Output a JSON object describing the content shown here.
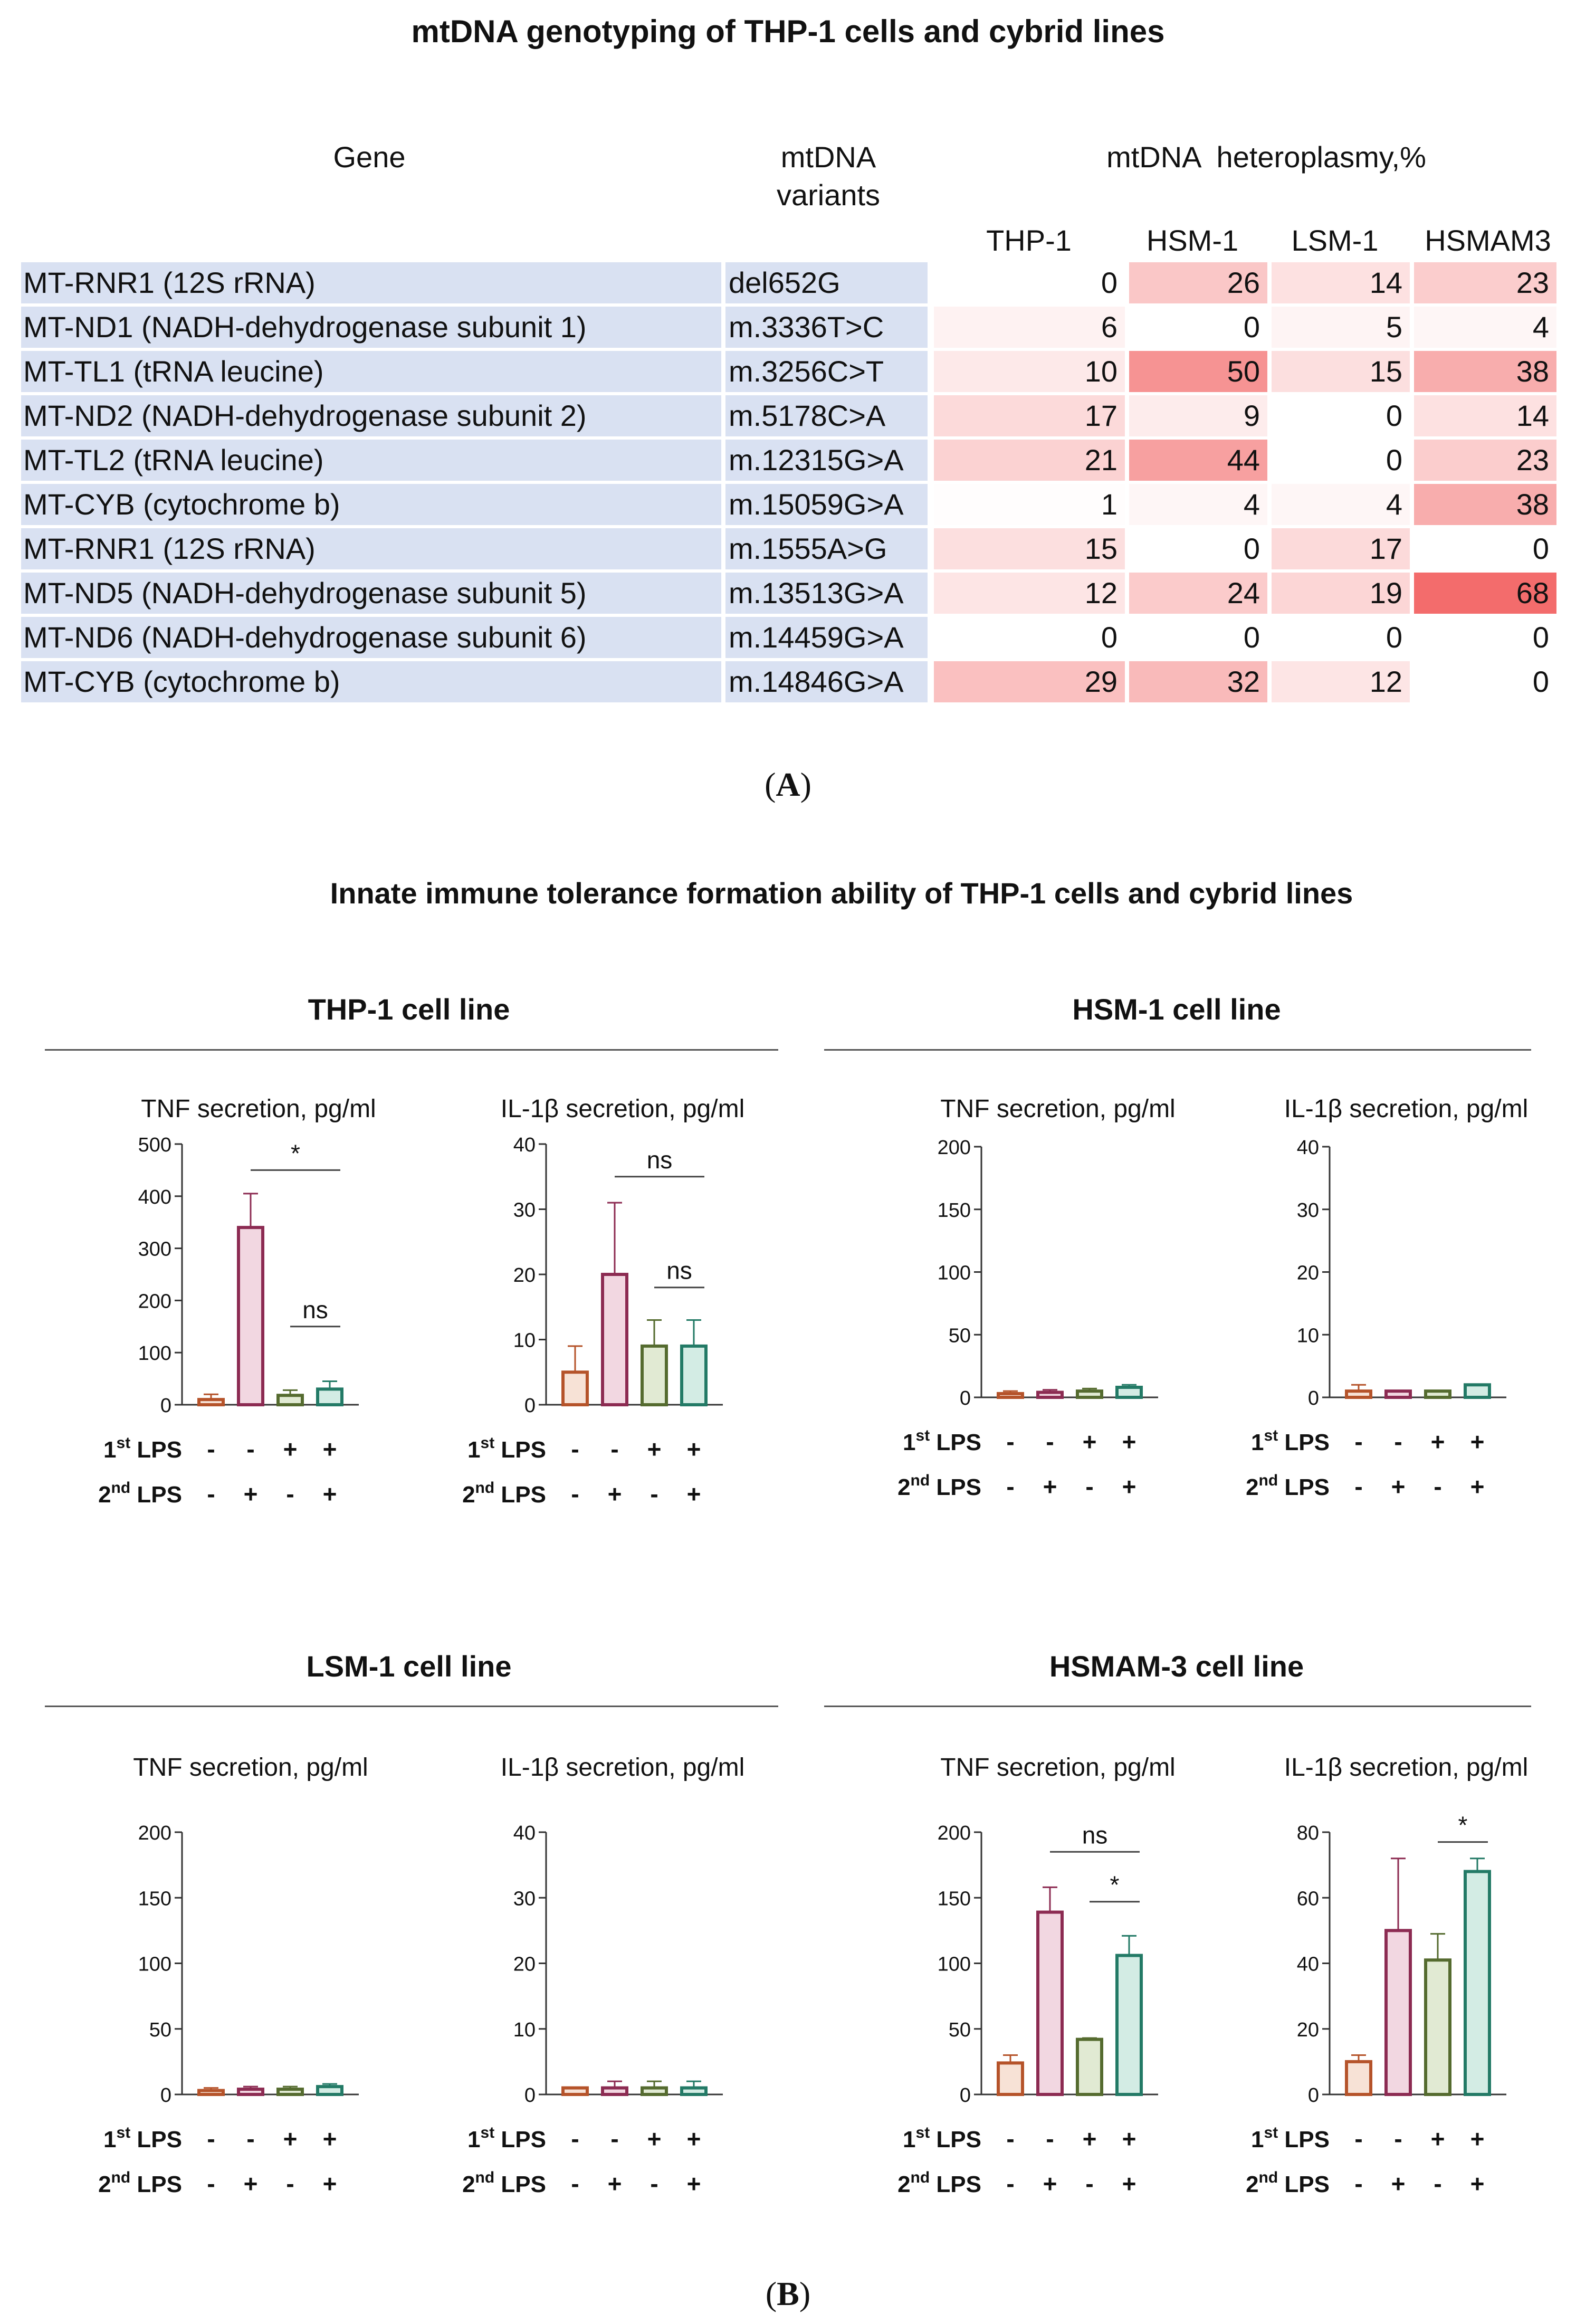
{
  "figure_a": {
    "title": "mtDNA genotyping of THP-1 cells and cybrid lines",
    "header_gene": "Gene",
    "header_variants": "mtDNA\nvariants",
    "header_heteroplasmy": "mtDNA  heteroplasmy,%",
    "columns": [
      "THP-1",
      "HSM-1",
      "LSM-1",
      "HSMAM3"
    ],
    "rows": [
      {
        "gene": "MT-RNR1 (12S rRNA)",
        "variant": "del652G",
        "values": [
          "0",
          "26",
          "14",
          "23"
        ]
      },
      {
        "gene": "MT-ND1 (NADH-dehydrogenase subunit 1)",
        "variant": "m.3336T>C",
        "values": [
          "6",
          "0",
          "5",
          "4"
        ]
      },
      {
        "gene": "MT-TL1 (tRNA leucine)",
        "variant": "m.3256C>T",
        "values": [
          "10",
          "50",
          "15",
          "38"
        ]
      },
      {
        "gene": "MT-ND2 (NADH-dehydrogenase subunit 2)",
        "variant": "m.5178C>A",
        "values": [
          "17",
          "9",
          "0",
          "14"
        ]
      },
      {
        "gene": "MT-TL2 (tRNA leucine)",
        "variant": "m.12315G>A",
        "values": [
          "21",
          "44",
          "0",
          "23"
        ]
      },
      {
        "gene": "MT-CYB (cytochrome b)",
        "variant": "m.15059G>A",
        "values": [
          "1",
          "4",
          "4",
          "38"
        ]
      },
      {
        "gene": "MT-RNR1 (12S rRNA)",
        "variant": "m.1555A>G",
        "values": [
          "15",
          "0",
          "17",
          "0"
        ]
      },
      {
        "gene": "MT-ND5 (NADH-dehydrogenase subunit 5)",
        "variant": "m.13513G>A",
        "values": [
          "12",
          "24",
          "19",
          "68"
        ]
      },
      {
        "gene": "MT-ND6 (NADH-dehydrogenase subunit 6)",
        "variant": "m.14459G>A",
        "values": [
          "0",
          "0",
          "0",
          "0"
        ]
      },
      {
        "gene": "MT-CYB (cytochrome b)",
        "variant": "m.14846G>A",
        "values": [
          "29",
          "32",
          "12",
          "0"
        ]
      }
    ],
    "heat_max": 68,
    "heat_color_high": "#f36c6c",
    "label": "A"
  },
  "figure_b": {
    "title": "Innate immune tolerance formation ability of THP-1 cells and cybrid lines",
    "label": "B",
    "row_labels": {
      "first_lps": {
        "num": "1",
        "sup": "st",
        "text": " LPS"
      },
      "second_lps": {
        "num": "2",
        "sup": "nd",
        "text": " LPS"
      },
      "first_signs": [
        "-",
        "-",
        "+",
        "+"
      ],
      "second_signs": [
        "-",
        "+",
        "-",
        "+"
      ]
    },
    "bar_colors": [
      "#b5532a",
      "#8c2b52",
      "#556b2f",
      "#237a66"
    ],
    "bar_fills": [
      "#f7e2d6",
      "#f2d7e1",
      "#e1ead3",
      "#d3ece4"
    ],
    "cell_lines": [
      {
        "name": "THP-1 cell line"
      },
      {
        "name": "HSM-1 cell line"
      },
      {
        "name": "LSM-1 cell line"
      },
      {
        "name": "HSMAM-3 cell line"
      }
    ]
  },
  "chart_data": [
    {
      "type": "bar",
      "title": "TNF secretion, pg/ml",
      "cell_line": "THP-1 cell line",
      "categories": [
        "1st - / 2nd -",
        "1st - / 2nd +",
        "1st + / 2nd -",
        "1st + / 2nd +"
      ],
      "values": [
        10,
        340,
        18,
        30
      ],
      "errors": [
        10,
        65,
        10,
        15
      ],
      "ylim": [
        0,
        500
      ],
      "yticks": [
        0,
        100,
        200,
        300,
        400,
        500
      ],
      "annotations": [
        {
          "from": 1,
          "to": 3,
          "y": 450,
          "text": "*"
        },
        {
          "from": 2,
          "to": 3,
          "y": 150,
          "text": "ns"
        }
      ]
    },
    {
      "type": "bar",
      "title": "IL-1β secretion, pg/ml",
      "cell_line": "THP-1 cell line",
      "categories": [
        "1st - / 2nd -",
        "1st - / 2nd +",
        "1st + / 2nd -",
        "1st + / 2nd +"
      ],
      "values": [
        5,
        20,
        9,
        9
      ],
      "errors": [
        4,
        11,
        4,
        4
      ],
      "ylim": [
        0,
        40
      ],
      "yticks": [
        0,
        10,
        20,
        30,
        40
      ],
      "annotations": [
        {
          "from": 1,
          "to": 3,
          "y": 35,
          "text": "ns"
        },
        {
          "from": 2,
          "to": 3,
          "y": 18,
          "text": "ns"
        }
      ]
    },
    {
      "type": "bar",
      "title": "TNF secretion, pg/ml",
      "cell_line": "HSM-1 cell line",
      "categories": [
        "1st - / 2nd -",
        "1st - / 2nd +",
        "1st + / 2nd -",
        "1st + / 2nd +"
      ],
      "values": [
        3,
        4,
        5,
        8
      ],
      "errors": [
        2,
        2,
        2,
        2
      ],
      "ylim": [
        0,
        200
      ],
      "yticks": [
        0,
        50,
        100,
        150,
        200
      ],
      "annotations": []
    },
    {
      "type": "bar",
      "title": "IL-1β secretion, pg/ml",
      "cell_line": "HSM-1 cell line",
      "categories": [
        "1st - / 2nd -",
        "1st - / 2nd +",
        "1st + / 2nd -",
        "1st + / 2nd +"
      ],
      "values": [
        1,
        1,
        1,
        2
      ],
      "errors": [
        1,
        0,
        0,
        0
      ],
      "ylim": [
        0,
        40
      ],
      "yticks": [
        0,
        10,
        20,
        30,
        40
      ],
      "annotations": []
    },
    {
      "type": "bar",
      "title": "TNF secretion, pg/ml",
      "cell_line": "LSM-1 cell line",
      "categories": [
        "1st - / 2nd -",
        "1st - / 2nd +",
        "1st + / 2nd -",
        "1st + / 2nd +"
      ],
      "values": [
        3,
        4,
        4,
        6
      ],
      "errors": [
        2,
        2,
        2,
        2
      ],
      "ylim": [
        0,
        200
      ],
      "yticks": [
        0,
        50,
        100,
        150,
        200
      ],
      "annotations": []
    },
    {
      "type": "bar",
      "title": "IL-1β secretion, pg/ml",
      "cell_line": "LSM-1 cell line",
      "categories": [
        "1st - / 2nd -",
        "1st - / 2nd +",
        "1st + / 2nd -",
        "1st + / 2nd +"
      ],
      "values": [
        1,
        1,
        1,
        1
      ],
      "errors": [
        0,
        1,
        1,
        1
      ],
      "ylim": [
        0,
        40
      ],
      "yticks": [
        0,
        10,
        20,
        30,
        40
      ],
      "annotations": []
    },
    {
      "type": "bar",
      "title": "TNF secretion, pg/ml",
      "cell_line": "HSMAM-3 cell line",
      "categories": [
        "1st - / 2nd -",
        "1st - / 2nd +",
        "1st + / 2nd -",
        "1st + / 2nd +"
      ],
      "values": [
        24,
        139,
        42,
        106
      ],
      "errors": [
        6,
        19,
        1,
        15
      ],
      "ylim": [
        0,
        200
      ],
      "yticks": [
        0,
        50,
        100,
        150,
        200
      ],
      "annotations": [
        {
          "from": 1,
          "to": 3,
          "y": 185,
          "text": "ns"
        },
        {
          "from": 2,
          "to": 3,
          "y": 147,
          "text": "*"
        }
      ]
    },
    {
      "type": "bar",
      "title": "IL-1β secretion, pg/ml",
      "cell_line": "HSMAM-3 cell line",
      "categories": [
        "1st - / 2nd -",
        "1st - / 2nd +",
        "1st + / 2nd -",
        "1st + / 2nd +"
      ],
      "values": [
        10,
        50,
        41,
        68
      ],
      "errors": [
        2,
        22,
        8,
        4
      ],
      "ylim": [
        0,
        80
      ],
      "yticks": [
        0,
        20,
        40,
        60,
        80
      ],
      "annotations": [
        {
          "from": 2,
          "to": 3,
          "y": 77,
          "text": "*"
        }
      ]
    }
  ]
}
